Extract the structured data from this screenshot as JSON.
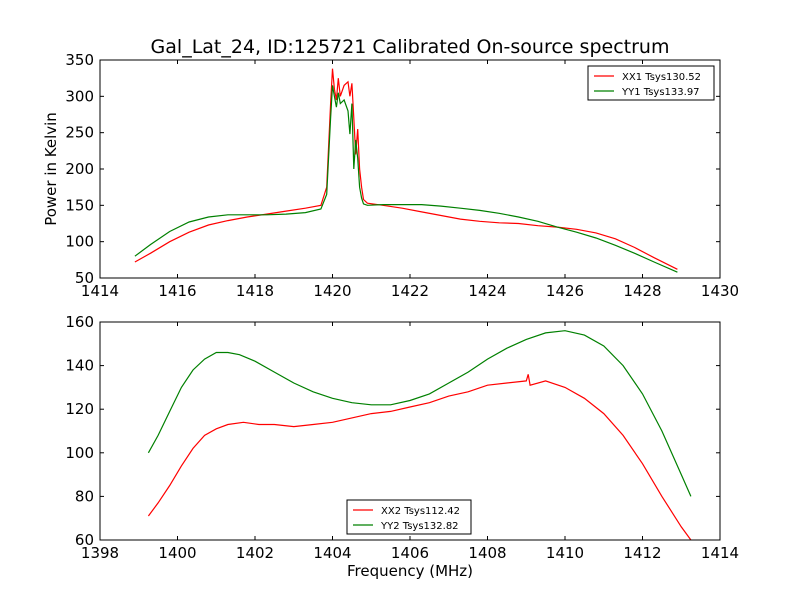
{
  "figure": {
    "title": "Gal_Lat_24, ID:125721 Calibrated On-source spectrum"
  },
  "colors": {
    "red": "#ff0000",
    "green": "#008000",
    "axes": "#000000"
  },
  "chart_data": [
    {
      "type": "line",
      "title": "Gal_Lat_24, ID:125721 Calibrated On-source spectrum",
      "xlabel": "",
      "ylabel": "Power in Kelvin",
      "xlim": [
        1414,
        1430
      ],
      "ylim": [
        50,
        350
      ],
      "xticks": [
        1414,
        1416,
        1418,
        1420,
        1422,
        1424,
        1426,
        1428,
        1430
      ],
      "yticks": [
        50,
        100,
        150,
        200,
        250,
        300,
        350
      ],
      "legend": "top-right",
      "grid": false,
      "series": [
        {
          "name": "XX1 Tsys130.52",
          "color": "#ff0000",
          "x": [
            1414.9,
            1415.3,
            1415.8,
            1416.3,
            1416.8,
            1417.3,
            1417.8,
            1418.3,
            1418.8,
            1419.3,
            1419.7,
            1419.85,
            1419.95,
            1420.0,
            1420.05,
            1420.1,
            1420.15,
            1420.2,
            1420.3,
            1420.4,
            1420.45,
            1420.5,
            1420.55,
            1420.6,
            1420.65,
            1420.7,
            1420.75,
            1420.8,
            1420.9,
            1421.3,
            1421.8,
            1422.3,
            1422.8,
            1423.3,
            1423.8,
            1424.3,
            1424.8,
            1425.3,
            1425.8,
            1426.3,
            1426.8,
            1427.3,
            1427.8,
            1428.3,
            1428.9
          ],
          "y": [
            72,
            84,
            100,
            113,
            123,
            129,
            134,
            138,
            142,
            146,
            150,
            175,
            290,
            338,
            310,
            295,
            325,
            300,
            315,
            320,
            300,
            318,
            270,
            220,
            255,
            200,
            175,
            158,
            153,
            150,
            146,
            141,
            136,
            131,
            128,
            126,
            125,
            122,
            120,
            117,
            112,
            104,
            92,
            78,
            62
          ]
        },
        {
          "name": "YY1 Tsys133.97",
          "color": "#008000",
          "x": [
            1414.9,
            1415.3,
            1415.8,
            1416.3,
            1416.8,
            1417.3,
            1417.8,
            1418.3,
            1418.8,
            1419.3,
            1419.7,
            1419.85,
            1419.95,
            1420.0,
            1420.05,
            1420.1,
            1420.15,
            1420.2,
            1420.3,
            1420.4,
            1420.45,
            1420.5,
            1420.55,
            1420.6,
            1420.65,
            1420.7,
            1420.75,
            1420.8,
            1420.9,
            1421.3,
            1421.8,
            1422.3,
            1422.8,
            1423.3,
            1423.8,
            1424.3,
            1424.8,
            1425.3,
            1425.8,
            1426.3,
            1426.8,
            1427.3,
            1427.8,
            1428.3,
            1428.9
          ],
          "y": [
            80,
            96,
            114,
            127,
            134,
            137,
            137,
            137,
            138,
            140,
            145,
            165,
            270,
            315,
            300,
            285,
            305,
            290,
            295,
            280,
            248,
            290,
            200,
            240,
            215,
            175,
            160,
            152,
            150,
            151,
            151,
            151,
            149,
            146,
            143,
            139,
            134,
            128,
            120,
            113,
            105,
            95,
            84,
            72,
            58
          ]
        }
      ]
    },
    {
      "type": "line",
      "title": "",
      "xlabel": "Frequency (MHz)",
      "ylabel": "",
      "xlim": [
        1398,
        1414
      ],
      "ylim": [
        60,
        160
      ],
      "xticks": [
        1398,
        1400,
        1402,
        1404,
        1406,
        1408,
        1410,
        1412,
        1414
      ],
      "yticks": [
        60,
        80,
        100,
        120,
        140,
        160
      ],
      "legend": "bottom-center",
      "grid": false,
      "series": [
        {
          "name": "XX2 Tsys112.42",
          "color": "#ff0000",
          "x": [
            1399.25,
            1399.5,
            1399.8,
            1400.1,
            1400.4,
            1400.7,
            1401.0,
            1401.3,
            1401.7,
            1402.1,
            1402.5,
            1403.0,
            1403.5,
            1404.0,
            1404.5,
            1405.0,
            1405.5,
            1406.0,
            1406.5,
            1407.0,
            1407.5,
            1408.0,
            1408.5,
            1409.0,
            1409.05,
            1409.1,
            1409.5,
            1410.0,
            1410.5,
            1411.0,
            1411.5,
            1412.0,
            1412.5,
            1413.0,
            1413.25
          ],
          "y": [
            71,
            77,
            85,
            94,
            102,
            108,
            111,
            113,
            114,
            113,
            113,
            112,
            113,
            114,
            116,
            118,
            119,
            121,
            123,
            126,
            128,
            131,
            132,
            133,
            136,
            131,
            133,
            130,
            125,
            118,
            108,
            95,
            80,
            66,
            60
          ]
        },
        {
          "name": "YY2 Tsys132.82",
          "color": "#008000",
          "x": [
            1399.25,
            1399.5,
            1399.8,
            1400.1,
            1400.4,
            1400.7,
            1401.0,
            1401.3,
            1401.6,
            1402.0,
            1402.5,
            1403.0,
            1403.5,
            1404.0,
            1404.5,
            1405.0,
            1405.5,
            1406.0,
            1406.5,
            1407.0,
            1407.5,
            1408.0,
            1408.5,
            1409.0,
            1409.5,
            1410.0,
            1410.5,
            1411.0,
            1411.5,
            1412.0,
            1412.5,
            1413.0,
            1413.25
          ],
          "y": [
            100,
            108,
            119,
            130,
            138,
            143,
            146,
            146,
            145,
            142,
            137,
            132,
            128,
            125,
            123,
            122,
            122,
            124,
            127,
            132,
            137,
            143,
            148,
            152,
            155,
            156,
            154,
            149,
            140,
            127,
            110,
            90,
            80
          ]
        }
      ]
    }
  ]
}
